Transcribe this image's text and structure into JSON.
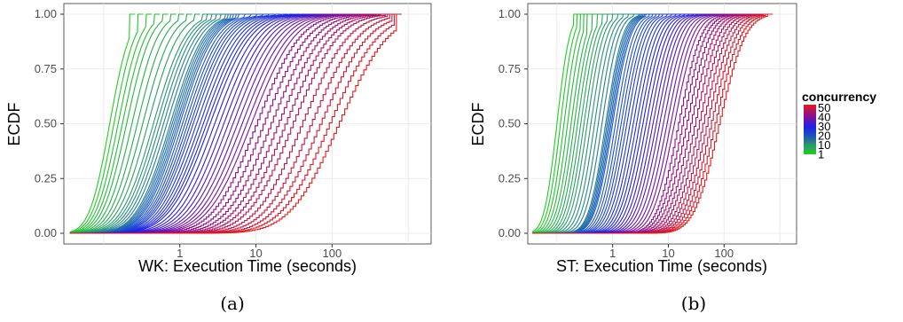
{
  "chart_data": [
    {
      "type": "line",
      "panel": "(a)",
      "xlabel": "WK: Execution Time (seconds)",
      "ylabel": "ECDF",
      "xscale": "log10",
      "xlim": [
        0.03,
        2000
      ],
      "ylim": [
        0,
        1
      ],
      "x_ticks": [
        1,
        10,
        100
      ],
      "x_tick_labels": [
        "1",
        "10",
        "100"
      ],
      "y_ticks": [
        0,
        0.25,
        0.5,
        0.75,
        1
      ],
      "y_tick_labels": [
        "0.00",
        "0.25",
        "0.50",
        "0.75",
        "1.00"
      ],
      "grid": true,
      "color_variable": "concurrency",
      "series": [
        {
          "concurrency": 1,
          "median": 0.12,
          "spread": 0.35,
          "tail_max": 0.22
        },
        {
          "concurrency": 5,
          "median": 0.2,
          "spread": 0.42,
          "tail_max": 0.6
        },
        {
          "concurrency": 10,
          "median": 0.45,
          "spread": 0.55,
          "tail_max": 2
        },
        {
          "concurrency": 15,
          "median": 0.75,
          "spread": 0.58,
          "tail_max": 4
        },
        {
          "concurrency": 20,
          "median": 1.0,
          "spread": 0.6,
          "tail_max": 6
        },
        {
          "concurrency": 25,
          "median": 1.5,
          "spread": 0.65,
          "tail_max": 15
        },
        {
          "concurrency": 30,
          "median": 2.5,
          "spread": 0.7,
          "tail_max": 40
        },
        {
          "concurrency": 35,
          "median": 5,
          "spread": 0.72,
          "tail_max": 100
        },
        {
          "concurrency": 40,
          "median": 10,
          "spread": 0.75,
          "tail_max": 250
        },
        {
          "concurrency": 45,
          "median": 30,
          "spread": 0.78,
          "tail_max": 500
        },
        {
          "concurrency": 50,
          "median": 120,
          "spread": 0.85,
          "tail_max": 700
        }
      ]
    },
    {
      "type": "line",
      "panel": "(b)",
      "xlabel": "ST: Execution Time (seconds)",
      "ylabel": "ECDF",
      "xscale": "log10",
      "xlim": [
        0.03,
        2000
      ],
      "ylim": [
        0,
        1
      ],
      "x_ticks": [
        1,
        10,
        100
      ],
      "x_tick_labels": [
        "1",
        "10",
        "100"
      ],
      "y_ticks": [
        0,
        0.25,
        0.5,
        0.75,
        1
      ],
      "y_tick_labels": [
        "0.00",
        "0.25",
        "0.50",
        "0.75",
        "1.00"
      ],
      "grid": true,
      "color_variable": "concurrency",
      "series": [
        {
          "concurrency": 1,
          "median": 0.1,
          "spread": 0.3,
          "tail_max": 0.2
        },
        {
          "concurrency": 5,
          "median": 0.18,
          "spread": 0.35,
          "tail_max": 0.35
        },
        {
          "concurrency": 10,
          "median": 0.35,
          "spread": 0.38,
          "tail_max": 1
        },
        {
          "concurrency": 15,
          "median": 0.75,
          "spread": 0.4,
          "tail_max": 3
        },
        {
          "concurrency": 20,
          "median": 1.0,
          "spread": 0.42,
          "tail_max": 4
        },
        {
          "concurrency": 25,
          "median": 1.8,
          "spread": 0.45,
          "tail_max": 8
        },
        {
          "concurrency": 30,
          "median": 3.5,
          "spread": 0.48,
          "tail_max": 20
        },
        {
          "concurrency": 35,
          "median": 7,
          "spread": 0.5,
          "tail_max": 50
        },
        {
          "concurrency": 40,
          "median": 15,
          "spread": 0.52,
          "tail_max": 150
        },
        {
          "concurrency": 45,
          "median": 35,
          "spread": 0.55,
          "tail_max": 400
        },
        {
          "concurrency": 50,
          "median": 80,
          "spread": 0.6,
          "tail_max": 600
        }
      ]
    }
  ],
  "legend": {
    "title": "concurrency",
    "placement": "right",
    "labels": [
      "50",
      "40",
      "30",
      "20",
      "10",
      "1"
    ],
    "colors": [
      "#e41a1c",
      "#8e0f8e",
      "#2020e8",
      "#1a5bb0",
      "#2a9a6a",
      "#22cc22"
    ]
  },
  "captions": [
    "(a)",
    "(b)"
  ]
}
